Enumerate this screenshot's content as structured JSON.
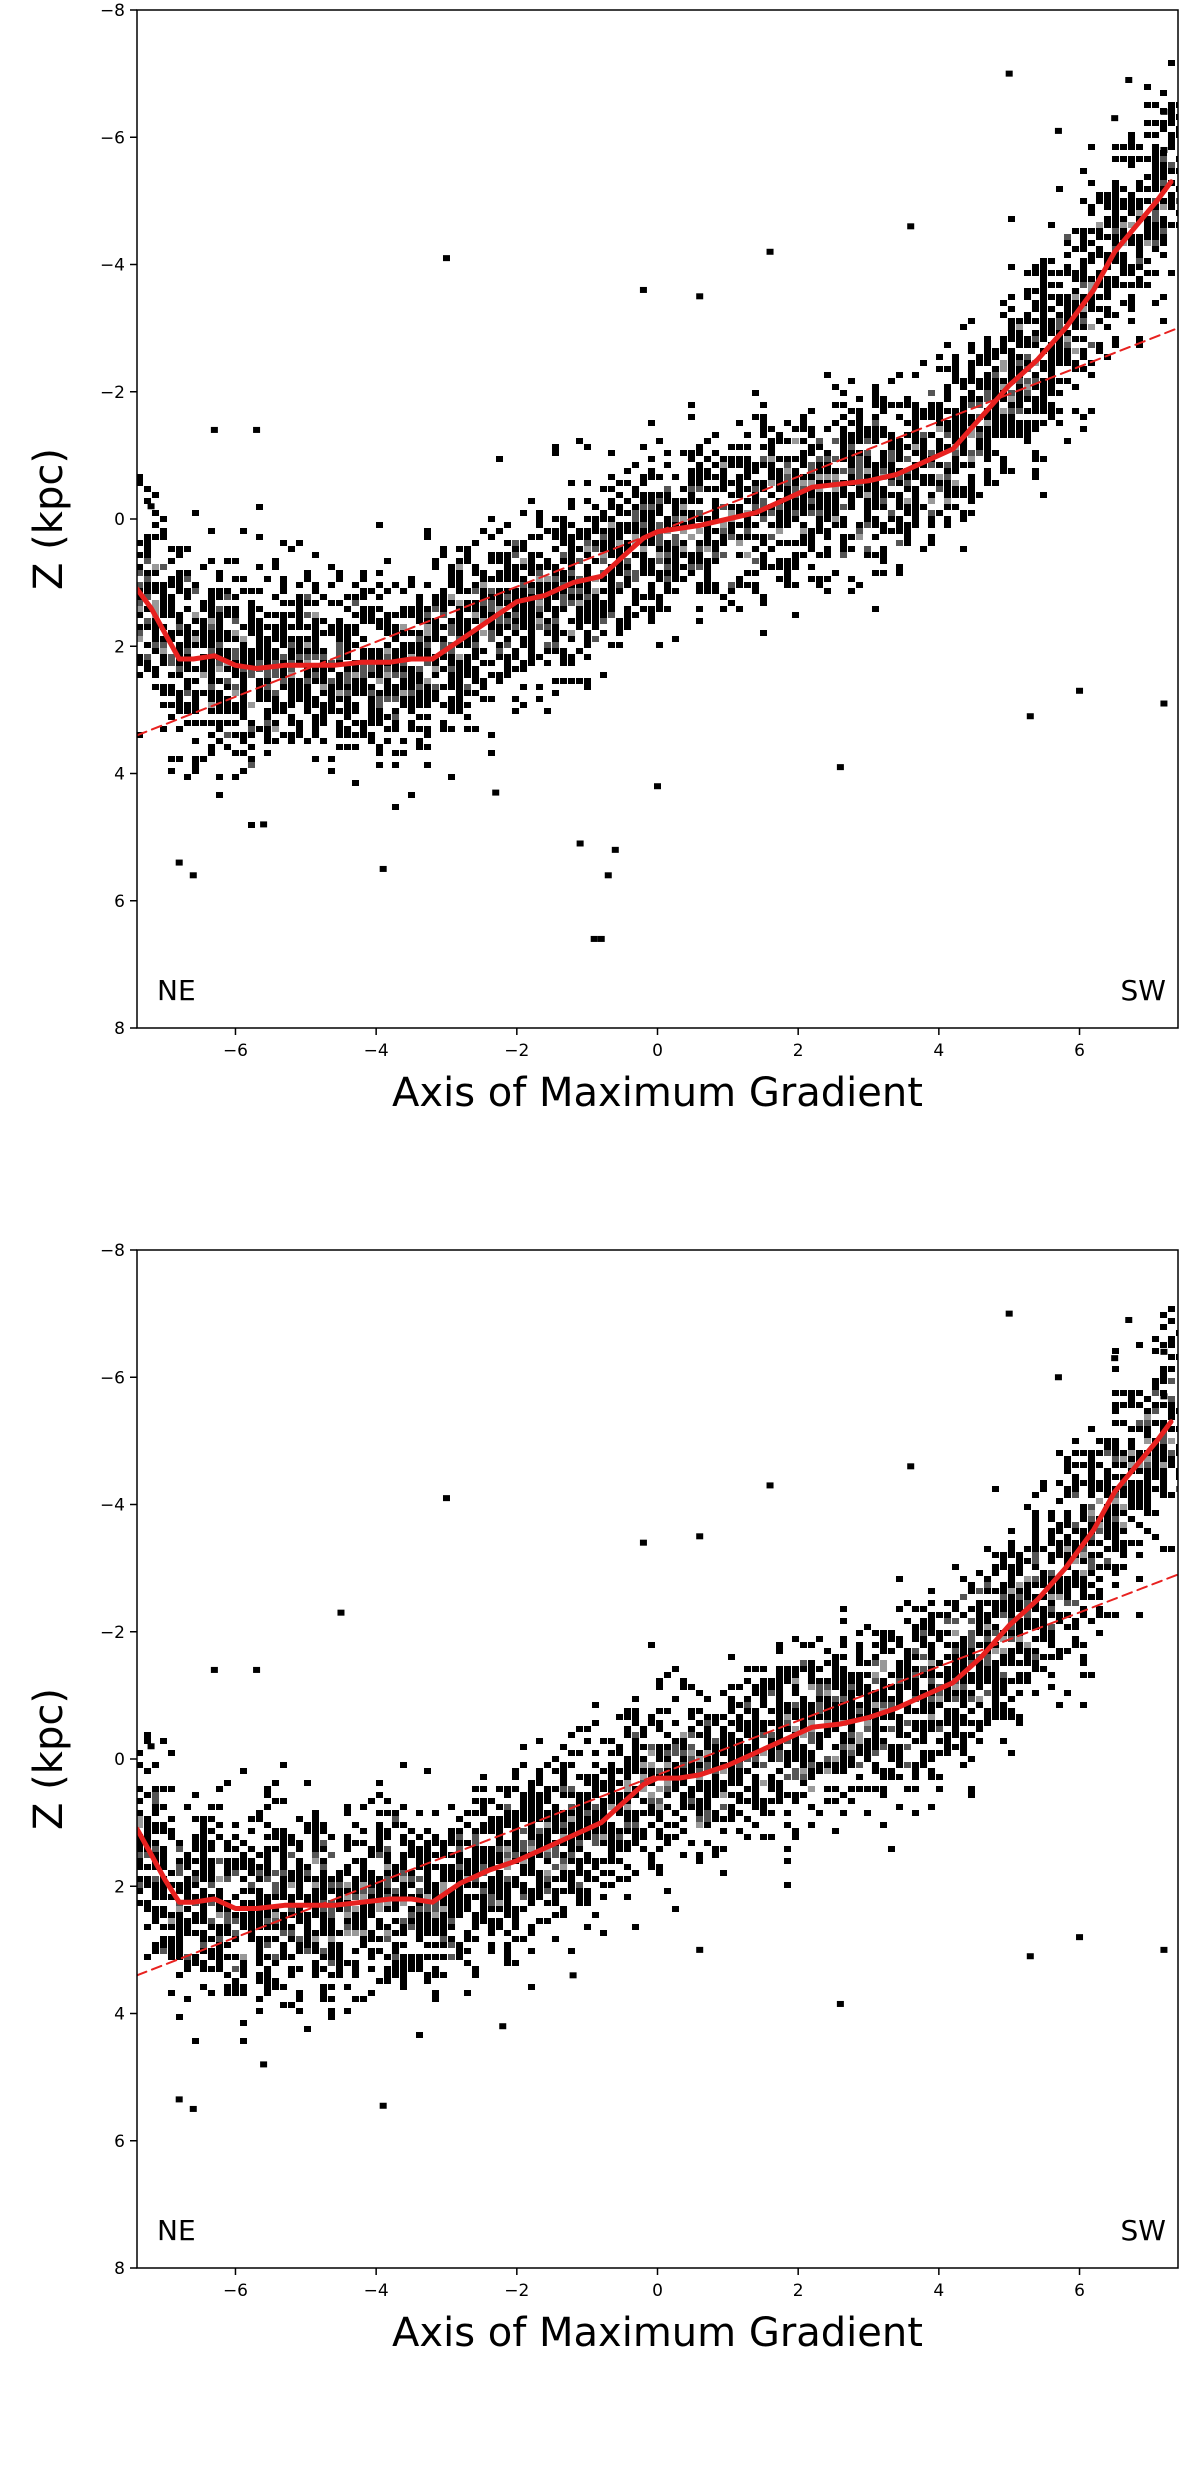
{
  "chart_data": [
    {
      "type": "scatter",
      "title": "",
      "xlabel": "Axis of Maximum Gradient",
      "ylabel": "Z (kpc)",
      "xlim": [
        -7.4,
        7.4
      ],
      "ylim": [
        8,
        -8
      ],
      "y_inverted": true,
      "xticks": [
        -6,
        -4,
        -2,
        0,
        2,
        4,
        6
      ],
      "xtick_labels": [
        "−6",
        "−4",
        "−2",
        "0",
        "2",
        "4",
        "6"
      ],
      "yticks": [
        -8,
        -6,
        -4,
        -2,
        0,
        2,
        4,
        6,
        8
      ],
      "ytick_labels": [
        "−8",
        "−6",
        "−4",
        "−2",
        "0",
        "2",
        "4",
        "6",
        "8"
      ],
      "grid": false,
      "annotations": [
        {
          "text": "NE",
          "position": "bottom-left"
        },
        {
          "text": "SW",
          "position": "bottom-right"
        }
      ],
      "density_colors": [
        "#000000",
        "#555555",
        "#999999"
      ],
      "outliers": [
        [
          -6.8,
          5.4
        ],
        [
          -6.6,
          5.6
        ],
        [
          -3.9,
          5.5
        ],
        [
          -1.1,
          5.1
        ],
        [
          -0.9,
          6.6
        ],
        [
          -0.8,
          6.6
        ],
        [
          -0.7,
          5.6
        ],
        [
          -0.6,
          5.2
        ],
        [
          -3.0,
          -4.1
        ],
        [
          5.0,
          -7.0
        ],
        [
          6.7,
          -6.9
        ],
        [
          7.2,
          -6.4
        ],
        [
          5.3,
          3.1
        ],
        [
          6.0,
          2.7
        ],
        [
          7.2,
          2.9
        ],
        [
          2.6,
          3.9
        ],
        [
          -2.3,
          4.3
        ],
        [
          0.0,
          4.2
        ],
        [
          -5.6,
          4.8
        ],
        [
          -6.3,
          -1.4
        ],
        [
          -5.7,
          -1.4
        ],
        [
          1.6,
          -4.2
        ],
        [
          3.6,
          -4.6
        ],
        [
          -7.2,
          -0.2
        ],
        [
          0.6,
          -3.5
        ],
        [
          -0.2,
          -3.6
        ],
        [
          5.7,
          -6.1
        ],
        [
          6.5,
          -6.3
        ],
        [
          7.2,
          -5.8
        ]
      ],
      "series": [
        {
          "kind": "line",
          "color": "#e8211f",
          "x": [
            -7.4,
            -7.2,
            -7.0,
            -6.8,
            -6.6,
            -6.3,
            -6.0,
            -5.7,
            -5.3,
            -5.0,
            -4.6,
            -4.2,
            -3.8,
            -3.5,
            -3.2,
            -2.8,
            -2.4,
            -2.0,
            -1.6,
            -1.2,
            -0.8,
            -0.5,
            -0.2,
            0.0,
            0.3,
            0.6,
            1.0,
            1.4,
            1.8,
            2.2,
            2.6,
            3.0,
            3.4,
            3.8,
            4.2,
            4.6,
            5.0,
            5.4,
            5.8,
            6.2,
            6.5,
            6.8,
            7.1,
            7.3
          ],
          "y": [
            1.1,
            1.4,
            1.8,
            2.2,
            2.2,
            2.15,
            2.3,
            2.35,
            2.3,
            2.3,
            2.3,
            2.25,
            2.25,
            2.2,
            2.2,
            1.9,
            1.6,
            1.3,
            1.2,
            1.0,
            0.9,
            0.6,
            0.3,
            0.2,
            0.15,
            0.1,
            0.0,
            -0.1,
            -0.3,
            -0.5,
            -0.55,
            -0.6,
            -0.7,
            -0.9,
            -1.1,
            -1.6,
            -2.1,
            -2.5,
            -3.0,
            -3.6,
            -4.2,
            -4.6,
            -5.0,
            -5.3
          ],
          "width": 5
        },
        {
          "kind": "line",
          "color": "#e8211f",
          "dashed": true,
          "x": [
            -7.4,
            7.4
          ],
          "y": [
            3.4,
            -3.0
          ],
          "width": 2
        }
      ]
    },
    {
      "type": "scatter",
      "title": "",
      "xlabel": "Axis of Maximum Gradient",
      "ylabel": "Z (kpc)",
      "xlim": [
        -7.4,
        7.4
      ],
      "ylim": [
        8,
        -8
      ],
      "y_inverted": true,
      "xticks": [
        -6,
        -4,
        -2,
        0,
        2,
        4,
        6
      ],
      "xtick_labels": [
        "−6",
        "−4",
        "−2",
        "0",
        "2",
        "4",
        "6"
      ],
      "yticks": [
        -8,
        -6,
        -4,
        -2,
        0,
        2,
        4,
        6,
        8
      ],
      "ytick_labels": [
        "−8",
        "−6",
        "−4",
        "−2",
        "0",
        "2",
        "4",
        "6",
        "8"
      ],
      "grid": false,
      "annotations": [
        {
          "text": "NE",
          "position": "bottom-left"
        },
        {
          "text": "SW",
          "position": "bottom-right"
        }
      ],
      "density_colors": [
        "#000000",
        "#555555",
        "#999999"
      ],
      "outliers": [
        [
          -6.8,
          5.35
        ],
        [
          -6.6,
          5.5
        ],
        [
          -3.9,
          5.45
        ],
        [
          -3.0,
          -4.1
        ],
        [
          5.0,
          -7.0
        ],
        [
          6.7,
          -6.9
        ],
        [
          7.2,
          -6.4
        ],
        [
          5.3,
          3.1
        ],
        [
          6.0,
          2.8
        ],
        [
          7.2,
          3.0
        ],
        [
          2.6,
          3.85
        ],
        [
          -2.2,
          4.2
        ],
        [
          -5.6,
          4.8
        ],
        [
          -6.3,
          -1.4
        ],
        [
          -5.7,
          -1.4
        ],
        [
          1.6,
          -4.3
        ],
        [
          3.6,
          -4.6
        ],
        [
          -7.2,
          -0.2
        ],
        [
          0.6,
          -3.5
        ],
        [
          -0.2,
          -3.4
        ],
        [
          5.7,
          -6.0
        ],
        [
          6.5,
          -6.3
        ],
        [
          7.2,
          -5.7
        ],
        [
          -1.2,
          3.4
        ],
        [
          0.6,
          3.0
        ],
        [
          -4.5,
          -2.3
        ]
      ],
      "series": [
        {
          "kind": "line",
          "color": "#e8211f",
          "x": [
            -7.4,
            -7.2,
            -7.0,
            -6.8,
            -6.6,
            -6.3,
            -6.0,
            -5.7,
            -5.3,
            -5.0,
            -4.6,
            -4.2,
            -3.8,
            -3.5,
            -3.2,
            -2.8,
            -2.4,
            -2.0,
            -1.6,
            -1.2,
            -0.8,
            -0.5,
            -0.2,
            0.0,
            0.3,
            0.6,
            1.0,
            1.4,
            1.8,
            2.2,
            2.6,
            3.0,
            3.4,
            3.8,
            4.2,
            4.6,
            5.0,
            5.4,
            5.8,
            6.2,
            6.5,
            6.8,
            7.1,
            7.3
          ],
          "y": [
            1.1,
            1.5,
            1.9,
            2.25,
            2.25,
            2.2,
            2.35,
            2.35,
            2.3,
            2.3,
            2.3,
            2.25,
            2.2,
            2.2,
            2.25,
            1.95,
            1.75,
            1.6,
            1.4,
            1.2,
            1.0,
            0.7,
            0.4,
            0.3,
            0.3,
            0.25,
            0.1,
            -0.1,
            -0.3,
            -0.5,
            -0.55,
            -0.65,
            -0.8,
            -1.0,
            -1.2,
            -1.6,
            -2.1,
            -2.5,
            -3.0,
            -3.6,
            -4.2,
            -4.6,
            -5.0,
            -5.3
          ],
          "width": 5
        },
        {
          "kind": "line",
          "color": "#e8211f",
          "dashed": true,
          "x": [
            -7.4,
            7.4
          ],
          "y": [
            3.4,
            -2.9
          ],
          "width": 2
        }
      ]
    }
  ]
}
